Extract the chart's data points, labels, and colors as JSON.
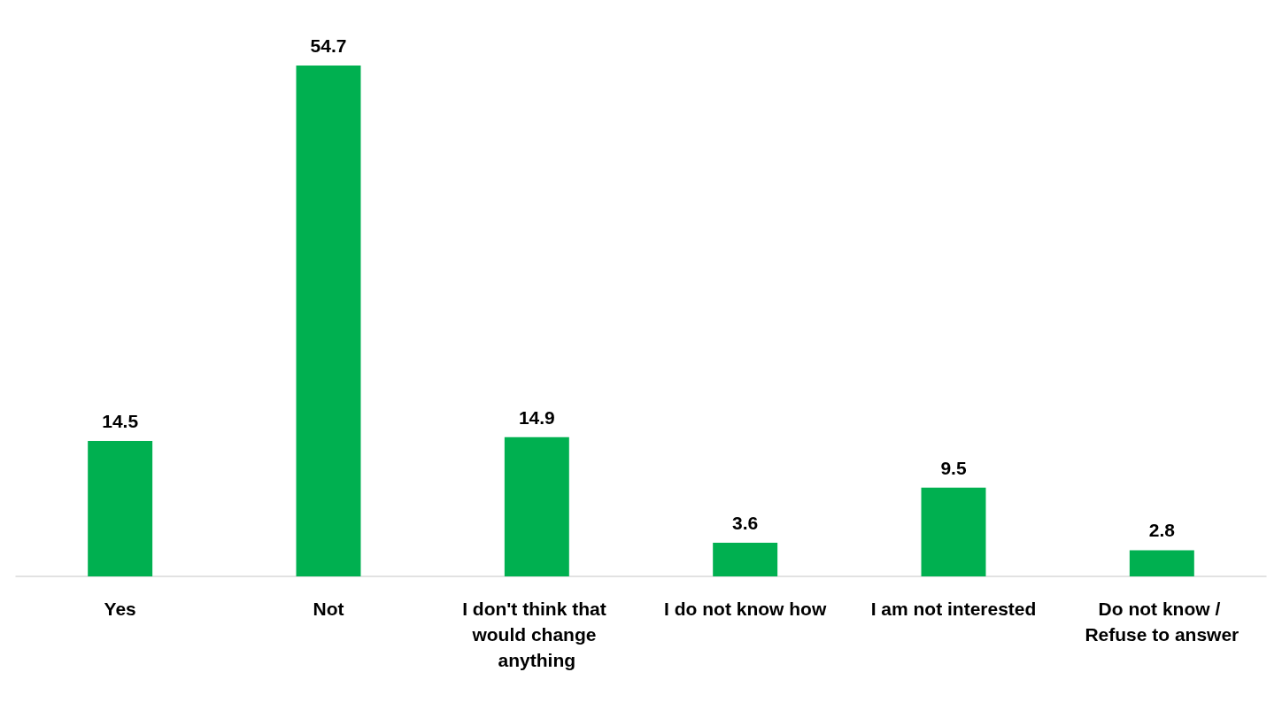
{
  "chart_data": {
    "type": "bar",
    "categories": [
      "Yes",
      "Not",
      "I don't think that would change anything",
      "I do not know how",
      "I am not interested",
      "Do not know / Refuse to answer"
    ],
    "values": [
      14.5,
      54.7,
      14.9,
      3.6,
      9.5,
      2.8
    ],
    "color": "#00b050",
    "data_labels": true,
    "grid": false
  }
}
